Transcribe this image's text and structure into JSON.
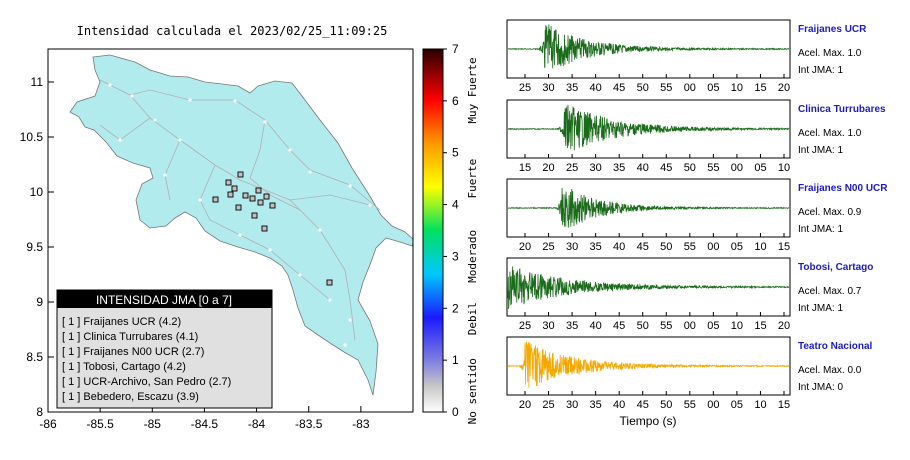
{
  "map": {
    "title": "Intensidad calculada el 2023/02/25_11:09:25",
    "xticks": [
      "-86",
      "-85.5",
      "-85",
      "-84.5",
      "-84",
      "-83.5",
      "-83"
    ],
    "yticks": [
      "11",
      "10.5",
      "10",
      "9.5",
      "9",
      "8.5",
      "8"
    ],
    "xlim": [
      -86,
      -82.5
    ],
    "ylim": [
      8,
      11.3
    ],
    "land_color": "#b2ebee",
    "legend_title": "INTENSIDAD JMA [0 a 7]",
    "legend_items": [
      "[ 1 ]  Fraijanes UCR (4.2)",
      "[ 1 ]  Clinica Turrubares (4.1)",
      "[ 1 ]  Fraijanes N00 UCR (2.7)",
      "[ 1 ]  Tobosi, Cartago (4.2)",
      "[ 1 ]  UCR-Archivo, San Pedro (2.7)",
      "[ 1 ]  Bebedero, Escazu (3.9)"
    ]
  },
  "colorbar": {
    "ticks": [
      "0",
      "1",
      "2",
      "3",
      "4",
      "5",
      "6",
      "7"
    ],
    "labels": [
      "No sentido",
      "Debil",
      "Moderado",
      "Fuerte",
      "Muy Fuerte"
    ]
  },
  "chart_data": {
    "type": "line",
    "xlabel": "Tiempo (s)",
    "traces": [
      {
        "name": "Fraijanes UCR",
        "acel_label": "Acel. Max. 1.0",
        "int_label": "Int JMA: 1",
        "color": "#1a6b1a",
        "ticks": [
          "25",
          "30",
          "35",
          "40",
          "45",
          "50",
          "55",
          "00",
          "05",
          "10",
          "15",
          "20"
        ],
        "burst_at": 0.13,
        "amp": 1.0,
        "decay": 7
      },
      {
        "name": "Clinica Turrubares",
        "acel_label": "Acel. Max. 1.0",
        "int_label": "Int JMA: 1",
        "color": "#1a6b1a",
        "ticks": [
          "15",
          "20",
          "25",
          "30",
          "35",
          "40",
          "45",
          "50",
          "55",
          "00",
          "05",
          "10"
        ],
        "burst_at": 0.2,
        "amp": 1.0,
        "decay": 6
      },
      {
        "name": "Fraijanes N00 UCR",
        "acel_label": "Acel. Max. 0.9",
        "int_label": "Int JMA: 1",
        "color": "#1a6b1a",
        "ticks": [
          "20",
          "25",
          "30",
          "35",
          "40",
          "45",
          "50",
          "55",
          "00",
          "05",
          "10",
          "15"
        ],
        "burst_at": 0.19,
        "amp": 0.95,
        "decay": 8
      },
      {
        "name": "Tobosi, Cartago",
        "acel_label": "Acel. Max. 0.7",
        "int_label": "Int JMA: 1",
        "color": "#1a6b1a",
        "ticks": [
          "25",
          "30",
          "35",
          "40",
          "45",
          "50",
          "55",
          "00",
          "05",
          "10",
          "15",
          "20"
        ],
        "burst_at": 0.0,
        "amp": 0.85,
        "decay": 5
      },
      {
        "name": "Teatro Nacional",
        "acel_label": "Acel. Max. 0.0",
        "int_label": "Int JMA: 0",
        "color": "#f5a800",
        "ticks": [
          "20",
          "25",
          "30",
          "35",
          "40",
          "45",
          "50",
          "55",
          "00",
          "05",
          "10",
          "15"
        ],
        "burst_at": 0.06,
        "amp": 0.95,
        "decay": 6
      }
    ]
  }
}
